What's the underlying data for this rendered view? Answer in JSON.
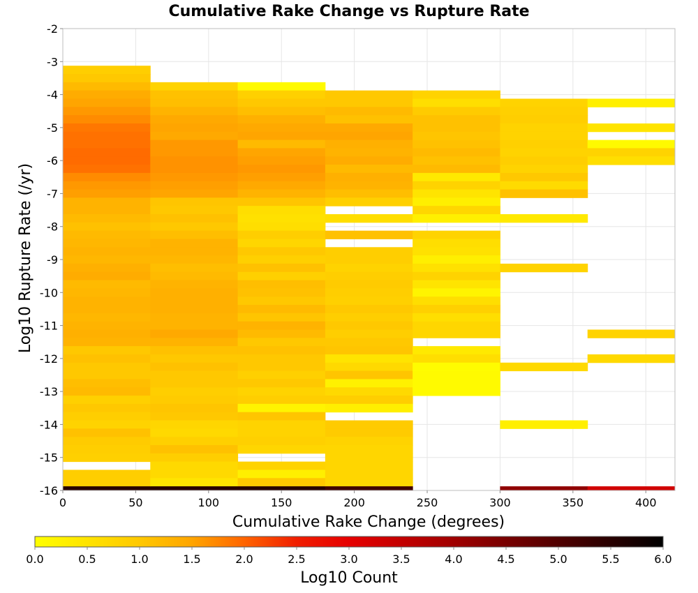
{
  "chart_data": {
    "type": "heatmap",
    "title": "Cumulative Rake Change vs Rupture Rate",
    "xlabel": "Cumulative Rake Change (degrees)",
    "ylabel": "Log10 Rupture Rate (/yr)",
    "xlim": [
      0,
      420
    ],
    "ylim": [
      -16,
      -2
    ],
    "x_ticks": [
      0,
      50,
      100,
      150,
      200,
      250,
      300,
      350,
      400
    ],
    "y_ticks": [
      -2,
      -3,
      -4,
      -5,
      -6,
      -7,
      -8,
      -9,
      -10,
      -11,
      -12,
      -13,
      -14,
      -15,
      -16
    ],
    "grid": true,
    "x_bin_width": 60,
    "y_bin_width": 0.25,
    "colorbar": {
      "label": "Log10 Count",
      "range": [
        0.0,
        6.0
      ],
      "ticks": [
        "0.0",
        "0.5",
        "1.0",
        "1.5",
        "2.0",
        "2.5",
        "3.0",
        "3.5",
        "4.0",
        "4.5",
        "5.0",
        "5.5",
        "6.0"
      ],
      "stops": [
        {
          "v": 0.0,
          "color": "#ffff00"
        },
        {
          "v": 1.0,
          "color": "#ffc800"
        },
        {
          "v": 1.5,
          "color": "#ffa500"
        },
        {
          "v": 2.0,
          "color": "#ff6400"
        },
        {
          "v": 2.5,
          "color": "#f01e00"
        },
        {
          "v": 3.0,
          "color": "#e60000"
        },
        {
          "v": 4.0,
          "color": "#a00000"
        },
        {
          "v": 5.0,
          "color": "#500000"
        },
        {
          "v": 6.0,
          "color": "#000000"
        }
      ]
    },
    "columns": [
      {
        "x0": 0,
        "x1": 60,
        "cells": [
          [
            -3.25,
            0.9
          ],
          [
            -3.5,
            1.0
          ],
          [
            -3.75,
            1.2
          ],
          [
            -4.0,
            1.4
          ],
          [
            -4.25,
            1.5
          ],
          [
            -4.5,
            1.6
          ],
          [
            -4.75,
            1.7
          ],
          [
            -5.0,
            1.85
          ],
          [
            -5.25,
            1.9
          ],
          [
            -5.5,
            1.9
          ],
          [
            -5.75,
            1.95
          ],
          [
            -6.0,
            1.95
          ],
          [
            -6.25,
            1.9
          ],
          [
            -6.5,
            1.7
          ],
          [
            -6.75,
            1.6
          ],
          [
            -7.0,
            1.55
          ],
          [
            -7.25,
            1.3
          ],
          [
            -7.5,
            1.3
          ],
          [
            -7.75,
            1.2
          ],
          [
            -8.0,
            1.1
          ],
          [
            -8.25,
            1.2
          ],
          [
            -8.5,
            1.25
          ],
          [
            -8.75,
            1.3
          ],
          [
            -9.0,
            1.25
          ],
          [
            -9.25,
            1.35
          ],
          [
            -9.5,
            1.4
          ],
          [
            -9.75,
            1.2
          ],
          [
            -10.0,
            1.25
          ],
          [
            -10.25,
            1.3
          ],
          [
            -10.5,
            1.3
          ],
          [
            -10.75,
            1.25
          ],
          [
            -11.0,
            1.3
          ],
          [
            -11.25,
            1.35
          ],
          [
            -11.5,
            1.3
          ],
          [
            -11.75,
            1.0
          ],
          [
            -12.0,
            1.1
          ],
          [
            -12.25,
            1.0
          ],
          [
            -12.5,
            1.0
          ],
          [
            -12.75,
            1.15
          ],
          [
            -13.0,
            1.2
          ],
          [
            -13.25,
            0.85
          ],
          [
            -13.5,
            1.0
          ],
          [
            -13.75,
            0.9
          ],
          [
            -14.0,
            0.8
          ],
          [
            -14.25,
            1.1
          ],
          [
            -14.5,
            0.95
          ],
          [
            -14.75,
            0.9
          ],
          [
            -15.0,
            0.85
          ],
          [
            -15.5,
            0.9
          ],
          [
            -15.75,
            0.9
          ],
          [
            -16.0,
            5.5
          ]
        ]
      },
      {
        "x0": 60,
        "x1": 120,
        "cells": [
          [
            -3.75,
            0.8
          ],
          [
            -4.0,
            1.1
          ],
          [
            -4.25,
            1.15
          ],
          [
            -4.5,
            1.3
          ],
          [
            -4.75,
            1.45
          ],
          [
            -5.0,
            1.5
          ],
          [
            -5.25,
            1.45
          ],
          [
            -5.5,
            1.6
          ],
          [
            -5.75,
            1.6
          ],
          [
            -6.0,
            1.65
          ],
          [
            -6.25,
            1.65
          ],
          [
            -6.5,
            1.6
          ],
          [
            -6.75,
            1.55
          ],
          [
            -7.0,
            1.5
          ],
          [
            -7.25,
            1.05
          ],
          [
            -7.5,
            1.0
          ],
          [
            -7.75,
            1.1
          ],
          [
            -8.0,
            1.0
          ],
          [
            -8.25,
            1.15
          ],
          [
            -8.5,
            1.3
          ],
          [
            -8.75,
            1.3
          ],
          [
            -9.0,
            1.25
          ],
          [
            -9.25,
            1.15
          ],
          [
            -9.5,
            1.2
          ],
          [
            -9.75,
            1.3
          ],
          [
            -10.0,
            1.35
          ],
          [
            -10.25,
            1.35
          ],
          [
            -10.5,
            1.35
          ],
          [
            -10.75,
            1.3
          ],
          [
            -11.0,
            1.3
          ],
          [
            -11.25,
            1.45
          ],
          [
            -11.5,
            1.3
          ],
          [
            -11.75,
            1.1
          ],
          [
            -12.0,
            1.0
          ],
          [
            -12.25,
            1.1
          ],
          [
            -12.5,
            1.0
          ],
          [
            -12.75,
            1.0
          ],
          [
            -13.0,
            0.9
          ],
          [
            -13.25,
            0.95
          ],
          [
            -13.5,
            1.05
          ],
          [
            -13.75,
            1.0
          ],
          [
            -14.0,
            0.75
          ],
          [
            -14.25,
            0.7
          ],
          [
            -14.5,
            0.85
          ],
          [
            -14.75,
            1.1
          ],
          [
            -15.0,
            0.9
          ],
          [
            -15.25,
            0.7
          ],
          [
            -15.5,
            0.7
          ],
          [
            -15.75,
            0.5
          ],
          [
            -16.0,
            5.5
          ]
        ]
      },
      {
        "x0": 120,
        "x1": 180,
        "cells": [
          [
            -3.75,
            0.1
          ],
          [
            -4.0,
            0.85
          ],
          [
            -4.25,
            1.0
          ],
          [
            -4.5,
            1.15
          ],
          [
            -4.75,
            1.35
          ],
          [
            -5.0,
            1.45
          ],
          [
            -5.25,
            1.5
          ],
          [
            -5.5,
            1.2
          ],
          [
            -5.75,
            1.5
          ],
          [
            -6.0,
            1.55
          ],
          [
            -6.25,
            1.6
          ],
          [
            -6.5,
            1.55
          ],
          [
            -6.75,
            1.45
          ],
          [
            -7.0,
            1.3
          ],
          [
            -7.25,
            1.05
          ],
          [
            -7.5,
            0.6
          ],
          [
            -7.75,
            0.55
          ],
          [
            -8.0,
            0.6
          ],
          [
            -8.25,
            0.9
          ],
          [
            -8.5,
            0.75
          ],
          [
            -8.75,
            1.0
          ],
          [
            -9.0,
            0.85
          ],
          [
            -9.25,
            1.1
          ],
          [
            -9.5,
            0.85
          ],
          [
            -9.75,
            1.15
          ],
          [
            -10.0,
            1.1
          ],
          [
            -10.25,
            1.0
          ],
          [
            -10.5,
            1.2
          ],
          [
            -10.75,
            1.05
          ],
          [
            -11.0,
            1.3
          ],
          [
            -11.25,
            1.2
          ],
          [
            -11.5,
            1.0
          ],
          [
            -11.75,
            1.1
          ],
          [
            -12.0,
            1.0
          ],
          [
            -12.25,
            1.0
          ],
          [
            -12.5,
            0.85
          ],
          [
            -12.75,
            1.0
          ],
          [
            -13.0,
            0.8
          ],
          [
            -13.25,
            0.9
          ],
          [
            -13.5,
            0.2
          ],
          [
            -13.75,
            1.05
          ],
          [
            -14.0,
            0.8
          ],
          [
            -14.25,
            0.8
          ],
          [
            -14.5,
            0.85
          ],
          [
            -14.75,
            0.75
          ],
          [
            -15.25,
            0.8
          ],
          [
            -15.5,
            0.3
          ],
          [
            -15.75,
            1.0
          ],
          [
            -16.0,
            5.5
          ]
        ]
      },
      {
        "x0": 180,
        "x1": 240,
        "cells": [
          [
            -4.0,
            1.0
          ],
          [
            -4.25,
            1.0
          ],
          [
            -4.5,
            1.2
          ],
          [
            -4.75,
            1.1
          ],
          [
            -5.0,
            1.45
          ],
          [
            -5.25,
            1.5
          ],
          [
            -5.5,
            1.35
          ],
          [
            -5.75,
            1.3
          ],
          [
            -6.0,
            1.4
          ],
          [
            -6.25,
            1.2
          ],
          [
            -6.5,
            1.35
          ],
          [
            -6.75,
            1.3
          ],
          [
            -7.0,
            1.15
          ],
          [
            -7.25,
            0.85
          ],
          [
            -7.75,
            0.6
          ],
          [
            -8.25,
            1.1
          ],
          [
            -8.75,
            0.9
          ],
          [
            -9.0,
            0.9
          ],
          [
            -9.25,
            0.8
          ],
          [
            -9.5,
            0.9
          ],
          [
            -9.75,
            0.95
          ],
          [
            -10.0,
            0.9
          ],
          [
            -10.25,
            0.85
          ],
          [
            -10.5,
            1.0
          ],
          [
            -10.75,
            0.9
          ],
          [
            -11.0,
            1.0
          ],
          [
            -11.25,
            0.9
          ],
          [
            -11.5,
            1.0
          ],
          [
            -11.75,
            1.05
          ],
          [
            -12.0,
            0.5
          ],
          [
            -12.25,
            0.7
          ],
          [
            -12.5,
            1.05
          ],
          [
            -12.75,
            0.25
          ],
          [
            -13.0,
            0.7
          ],
          [
            -13.25,
            0.9
          ],
          [
            -13.5,
            0.3
          ],
          [
            -14.0,
            0.95
          ],
          [
            -14.25,
            0.95
          ],
          [
            -14.5,
            0.8
          ],
          [
            -14.75,
            0.75
          ],
          [
            -15.0,
            0.75
          ],
          [
            -15.25,
            0.75
          ],
          [
            -15.5,
            0.75
          ],
          [
            -15.75,
            0.75
          ],
          [
            -16.0,
            5.2
          ]
        ]
      },
      {
        "x0": 240,
        "x1": 300,
        "cells": [
          [
            -4.0,
            0.8
          ],
          [
            -4.25,
            0.6
          ],
          [
            -4.5,
            0.95
          ],
          [
            -4.75,
            1.1
          ],
          [
            -5.0,
            1.1
          ],
          [
            -5.25,
            1.05
          ],
          [
            -5.5,
            1.1
          ],
          [
            -5.75,
            1.2
          ],
          [
            -6.0,
            1.1
          ],
          [
            -6.25,
            1.2
          ],
          [
            -6.5,
            0.4
          ],
          [
            -6.75,
            0.8
          ],
          [
            -7.0,
            0.5
          ],
          [
            -7.25,
            0.3
          ],
          [
            -7.5,
            0.75
          ],
          [
            -7.75,
            0.3
          ],
          [
            -8.25,
            0.8
          ],
          [
            -8.5,
            0.6
          ],
          [
            -8.75,
            0.55
          ],
          [
            -9.0,
            0.3
          ],
          [
            -9.25,
            0.55
          ],
          [
            -9.5,
            0.8
          ],
          [
            -9.75,
            0.5
          ],
          [
            -10.0,
            0.2
          ],
          [
            -10.25,
            0.6
          ],
          [
            -10.5,
            0.85
          ],
          [
            -10.75,
            0.6
          ],
          [
            -11.0,
            0.75
          ],
          [
            -11.25,
            0.75
          ],
          [
            -11.75,
            0.4
          ],
          [
            -12.0,
            0.6
          ],
          [
            -12.25,
            0.05
          ],
          [
            -12.5,
            0.1
          ],
          [
            -12.75,
            0.1
          ],
          [
            -13.0,
            0.1
          ]
        ]
      },
      {
        "x0": 300,
        "x1": 360,
        "cells": [
          [
            -4.25,
            0.8
          ],
          [
            -4.5,
            0.85
          ],
          [
            -4.75,
            0.9
          ],
          [
            -5.0,
            0.8
          ],
          [
            -5.25,
            0.8
          ],
          [
            -5.5,
            0.85
          ],
          [
            -5.75,
            0.8
          ],
          [
            -6.0,
            0.9
          ],
          [
            -6.25,
            0.8
          ],
          [
            -6.5,
            1.0
          ],
          [
            -6.75,
            0.65
          ],
          [
            -7.0,
            1.1
          ],
          [
            -7.75,
            0.4
          ],
          [
            -9.25,
            0.8
          ],
          [
            -12.25,
            0.7
          ],
          [
            -14.0,
            0.3
          ],
          [
            -16.0,
            4.2
          ]
        ]
      },
      {
        "x0": 360,
        "x1": 420,
        "cells": [
          [
            -4.25,
            0.3
          ],
          [
            -5.0,
            0.5
          ],
          [
            -5.5,
            0.1
          ],
          [
            -5.75,
            0.8
          ],
          [
            -6.0,
            0.6
          ],
          [
            -11.25,
            0.8
          ],
          [
            -12.0,
            0.7
          ],
          [
            -16.0,
            3.3
          ]
        ]
      }
    ]
  }
}
